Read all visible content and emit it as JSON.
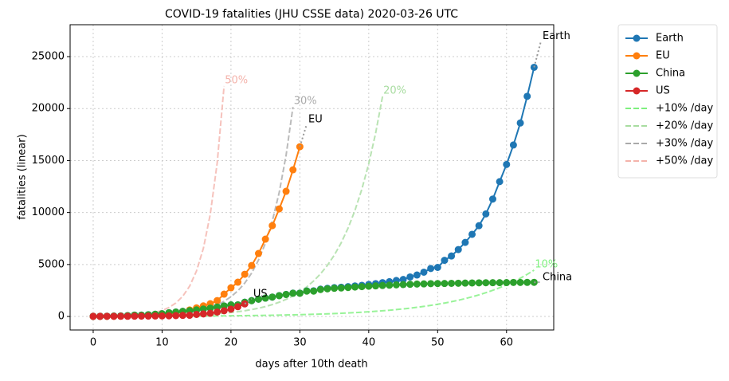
{
  "chart_data": {
    "type": "line",
    "title": "COVID-19 fatalities (JHU CSSE data) 2020-03-26 UTC",
    "xlabel": "days after 10th death",
    "ylabel": "fatalities (linear)",
    "xlim": [
      -3.35,
      66.85
    ],
    "ylim": [
      -1300,
      28070
    ],
    "xticks": [
      0,
      10,
      20,
      30,
      40,
      50,
      60
    ],
    "yticks": [
      0,
      5000,
      10000,
      15000,
      20000,
      25000
    ],
    "grid": true,
    "legend": "outside right",
    "series": [
      {
        "name": "Earth",
        "color": "#1f77b4",
        "style": "marker",
        "values": [
          17,
          18,
          26,
          42,
          56,
          82,
          131,
          133,
          171,
          213,
          259,
          362,
          426,
          492,
          564,
          634,
          719,
          806,
          906,
          1013,
          1113,
          1118,
          1371,
          1523,
          1666,
          1770,
          1868,
          2007,
          2122,
          2247,
          2251,
          2458,
          2469,
          2629,
          2708,
          2770,
          2814,
          2872,
          2941,
          2996,
          3085,
          3160,
          3254,
          3348,
          3460,
          3558,
          3802,
          3988,
          4262,
          4615,
          4720,
          5404,
          5819,
          6440,
          7126,
          7905,
          8733,
          9867,
          11299,
          12973,
          14623,
          16497,
          18615,
          21181,
          23970
        ],
        "annotation": {
          "text": "Earth",
          "x": 65,
          "y": 26500
        }
      },
      {
        "name": "EU",
        "color": "#ff7f0e",
        "style": "marker",
        "values": [
          10,
          12,
          17,
          21,
          29,
          38,
          52,
          80,
          107,
          148,
          197,
          233,
          366,
          463,
          631,
          827,
          1016,
          1230,
          1530,
          2150,
          2760,
          3300,
          4060,
          4900,
          6060,
          7440,
          8740,
          10350,
          12040,
          14110,
          16330
        ],
        "annotation": {
          "text": "EU",
          "x": 31,
          "y": 18500
        }
      },
      {
        "name": "China",
        "color": "#2ca02c",
        "style": "marker",
        "values": [
          17,
          18,
          26,
          42,
          56,
          82,
          131,
          133,
          171,
          213,
          259,
          361,
          425,
          490,
          562,
          632,
          717,
          804,
          904,
          1011,
          1111,
          1116,
          1368,
          1520,
          1662,
          1765,
          1863,
          2002,
          2114,
          2236,
          2236,
          2441,
          2443,
          2593,
          2663,
          2715,
          2744,
          2788,
          2835,
          2870,
          2912,
          2943,
          2981,
          3013,
          3042,
          3070,
          3097,
          3119,
          3136,
          3158,
          3169,
          3176,
          3189,
          3199,
          3213,
          3226,
          3237,
          3245,
          3249,
          3253,
          3259,
          3274,
          3274,
          3281,
          3285
        ],
        "annotation": {
          "text": "China",
          "x": 65,
          "y": 3300
        }
      },
      {
        "name": "US",
        "color": "#d62728",
        "style": "marker",
        "values": [
          11,
          12,
          14,
          17,
          21,
          22,
          28,
          36,
          40,
          47,
          54,
          63,
          85,
          108,
          118,
          200,
          244,
          307,
          427,
          552,
          706,
          942,
          1209
        ],
        "annotation": {
          "text": "US",
          "x": 23,
          "y": 1700
        }
      },
      {
        "name": "+10% /day",
        "color": "#7ef07e",
        "style": "dashed",
        "end_label": "10%",
        "values": [
          10,
          11,
          12,
          13,
          15,
          16,
          18,
          19,
          21,
          24,
          26,
          29,
          31,
          35,
          38,
          42,
          46,
          51,
          56,
          61,
          67,
          74,
          81,
          90,
          98,
          108,
          119,
          131,
          144,
          159,
          174,
          192,
          211,
          232,
          256,
          281,
          309,
          340,
          374,
          411,
          453,
          498,
          548,
          602,
          663,
          729,
          802,
          882,
          970,
          1067,
          1174,
          1291,
          1420,
          1562,
          1719,
          1891,
          2080,
          2288,
          2516,
          2768,
          3045,
          3349,
          3684,
          4053,
          4458
        ]
      },
      {
        "name": "+20% /day",
        "color": "#a8dca0",
        "style": "dashed",
        "end_label": "20%",
        "values": [
          10,
          12,
          14,
          17,
          21,
          25,
          30,
          36,
          43,
          52,
          62,
          74,
          89,
          107,
          128,
          154,
          185,
          222,
          266,
          319,
          383,
          460,
          552,
          662,
          795,
          954,
          1145,
          1374,
          1648,
          1978,
          2374,
          2849,
          3418,
          4102,
          4922,
          5907,
          7088,
          8506,
          10207,
          12248,
          14698,
          17637,
          21165
        ]
      },
      {
        "name": "+30% /day",
        "color": "#aaaaaa",
        "style": "dashed",
        "end_label": "30%",
        "values": [
          10,
          13,
          17,
          22,
          29,
          37,
          48,
          63,
          82,
          106,
          138,
          179,
          233,
          303,
          394,
          512,
          665,
          865,
          1125,
          1462,
          1900,
          2470,
          3211,
          4175,
          5428,
          7056,
          9173,
          11925,
          15502,
          20153
        ]
      },
      {
        "name": "+50% /day",
        "color": "#f4b3ab",
        "style": "dashed",
        "end_label": "50%",
        "values": [
          10,
          15,
          23,
          34,
          51,
          76,
          114,
          171,
          256,
          384,
          577,
          865,
          1297,
          1946,
          2919,
          4379,
          6568,
          9853,
          14779,
          22168
        ]
      }
    ]
  }
}
